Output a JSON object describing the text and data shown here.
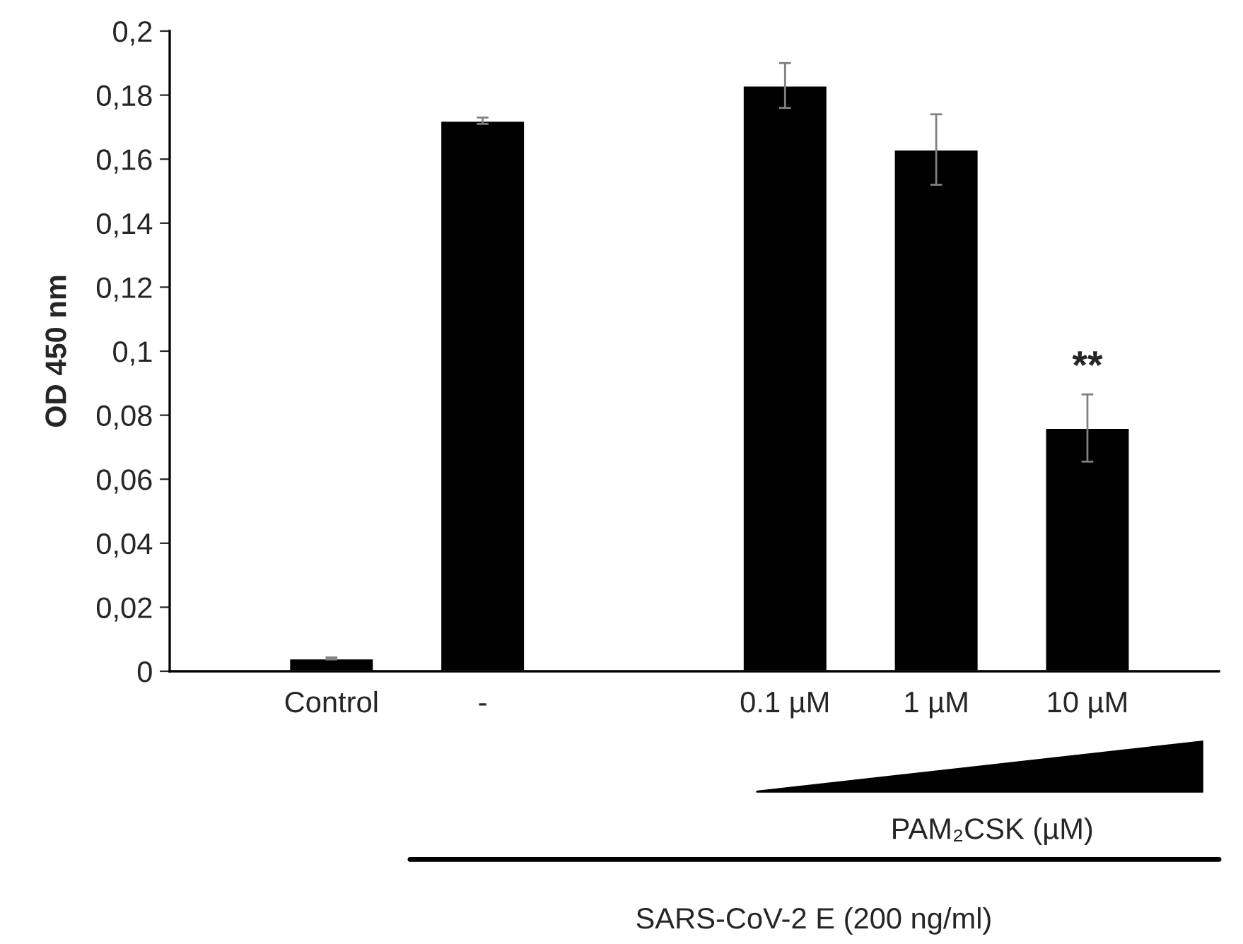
{
  "chart_data": {
    "type": "bar",
    "ylabel": "OD 450 nm",
    "categories": [
      "Control",
      "-",
      null,
      "0.1 µM",
      "1 µM",
      "10 µM"
    ],
    "values": [
      0.004,
      0.172,
      null,
      0.183,
      0.163,
      0.076
    ],
    "errors": [
      0.0003,
      0.001,
      null,
      0.007,
      0.011,
      0.0105
    ],
    "color": "#000000",
    "ylim": [
      0,
      0.2
    ],
    "yticks": [
      0,
      {
        "value": 0.02,
        "label": "0,02"
      },
      {
        "value": 0.04,
        "label": "0,04"
      },
      {
        "value": 0.06,
        "label": "0,06"
      },
      {
        "value": 0.08,
        "label": "0,08"
      },
      {
        "value": 0.1,
        "label": "0,1"
      },
      {
        "value": 0.12,
        "label": "0,12"
      },
      {
        "value": 0.14,
        "label": "0,14"
      },
      {
        "value": 0.16,
        "label": "0,16"
      },
      {
        "value": 0.18,
        "label": "0,18"
      },
      {
        "value": 0.2,
        "label": "0,2"
      }
    ],
    "grid": false,
    "legend": false,
    "annotations": [
      "**",
      "PAM₂CSK (µM)",
      "SARS-CoV-2 E (200 ng/ml)"
    ]
  }
}
